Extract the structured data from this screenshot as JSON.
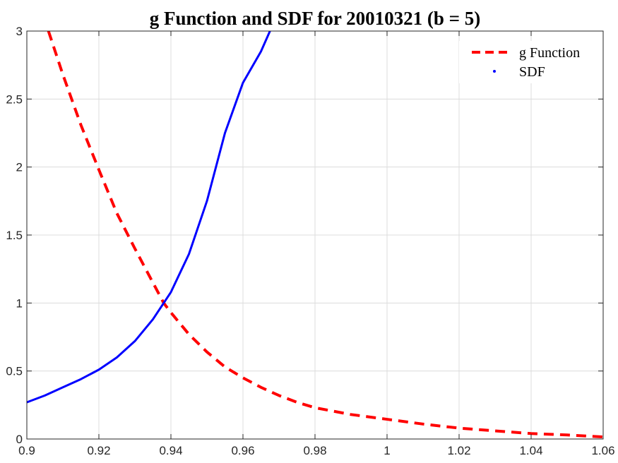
{
  "chart_data": {
    "type": "line",
    "title": "g Function and SDF for 20010321 (b = 5)",
    "xlabel": "",
    "ylabel": "",
    "xlim": [
      0.9,
      1.06
    ],
    "ylim": [
      0,
      3
    ],
    "x_ticks": [
      "0.9",
      "0.92",
      "0.94",
      "0.96",
      "0.98",
      "1",
      "1.02",
      "1.04",
      "1.06"
    ],
    "y_ticks": [
      "0",
      "0.5",
      "1",
      "1.5",
      "2",
      "2.5",
      "3"
    ],
    "grid": true,
    "legend_position": "top-right",
    "series": [
      {
        "name": "g Function",
        "color": "#ff0000",
        "style": "dashed",
        "x": [
          0.906,
          0.91,
          0.915,
          0.92,
          0.925,
          0.93,
          0.935,
          0.938,
          0.94,
          0.945,
          0.95,
          0.955,
          0.96,
          0.965,
          0.97,
          0.975,
          0.98,
          0.99,
          1.0,
          1.01,
          1.02,
          1.03,
          1.04,
          1.05,
          1.06
        ],
        "y": [
          3.0,
          2.68,
          2.31,
          1.98,
          1.66,
          1.4,
          1.15,
          1.0,
          0.93,
          0.77,
          0.64,
          0.53,
          0.45,
          0.38,
          0.32,
          0.27,
          0.23,
          0.18,
          0.145,
          0.11,
          0.08,
          0.06,
          0.04,
          0.03,
          0.015
        ]
      },
      {
        "name": "SDF",
        "color": "#0000ff",
        "style": "solid",
        "x": [
          0.9,
          0.905,
          0.91,
          0.915,
          0.92,
          0.925,
          0.93,
          0.935,
          0.938,
          0.94,
          0.945,
          0.95,
          0.955,
          0.96,
          0.965,
          0.9675
        ],
        "y": [
          0.27,
          0.32,
          0.38,
          0.44,
          0.51,
          0.6,
          0.72,
          0.88,
          1.0,
          1.08,
          1.36,
          1.75,
          2.25,
          2.62,
          2.85,
          3.0
        ]
      }
    ]
  }
}
